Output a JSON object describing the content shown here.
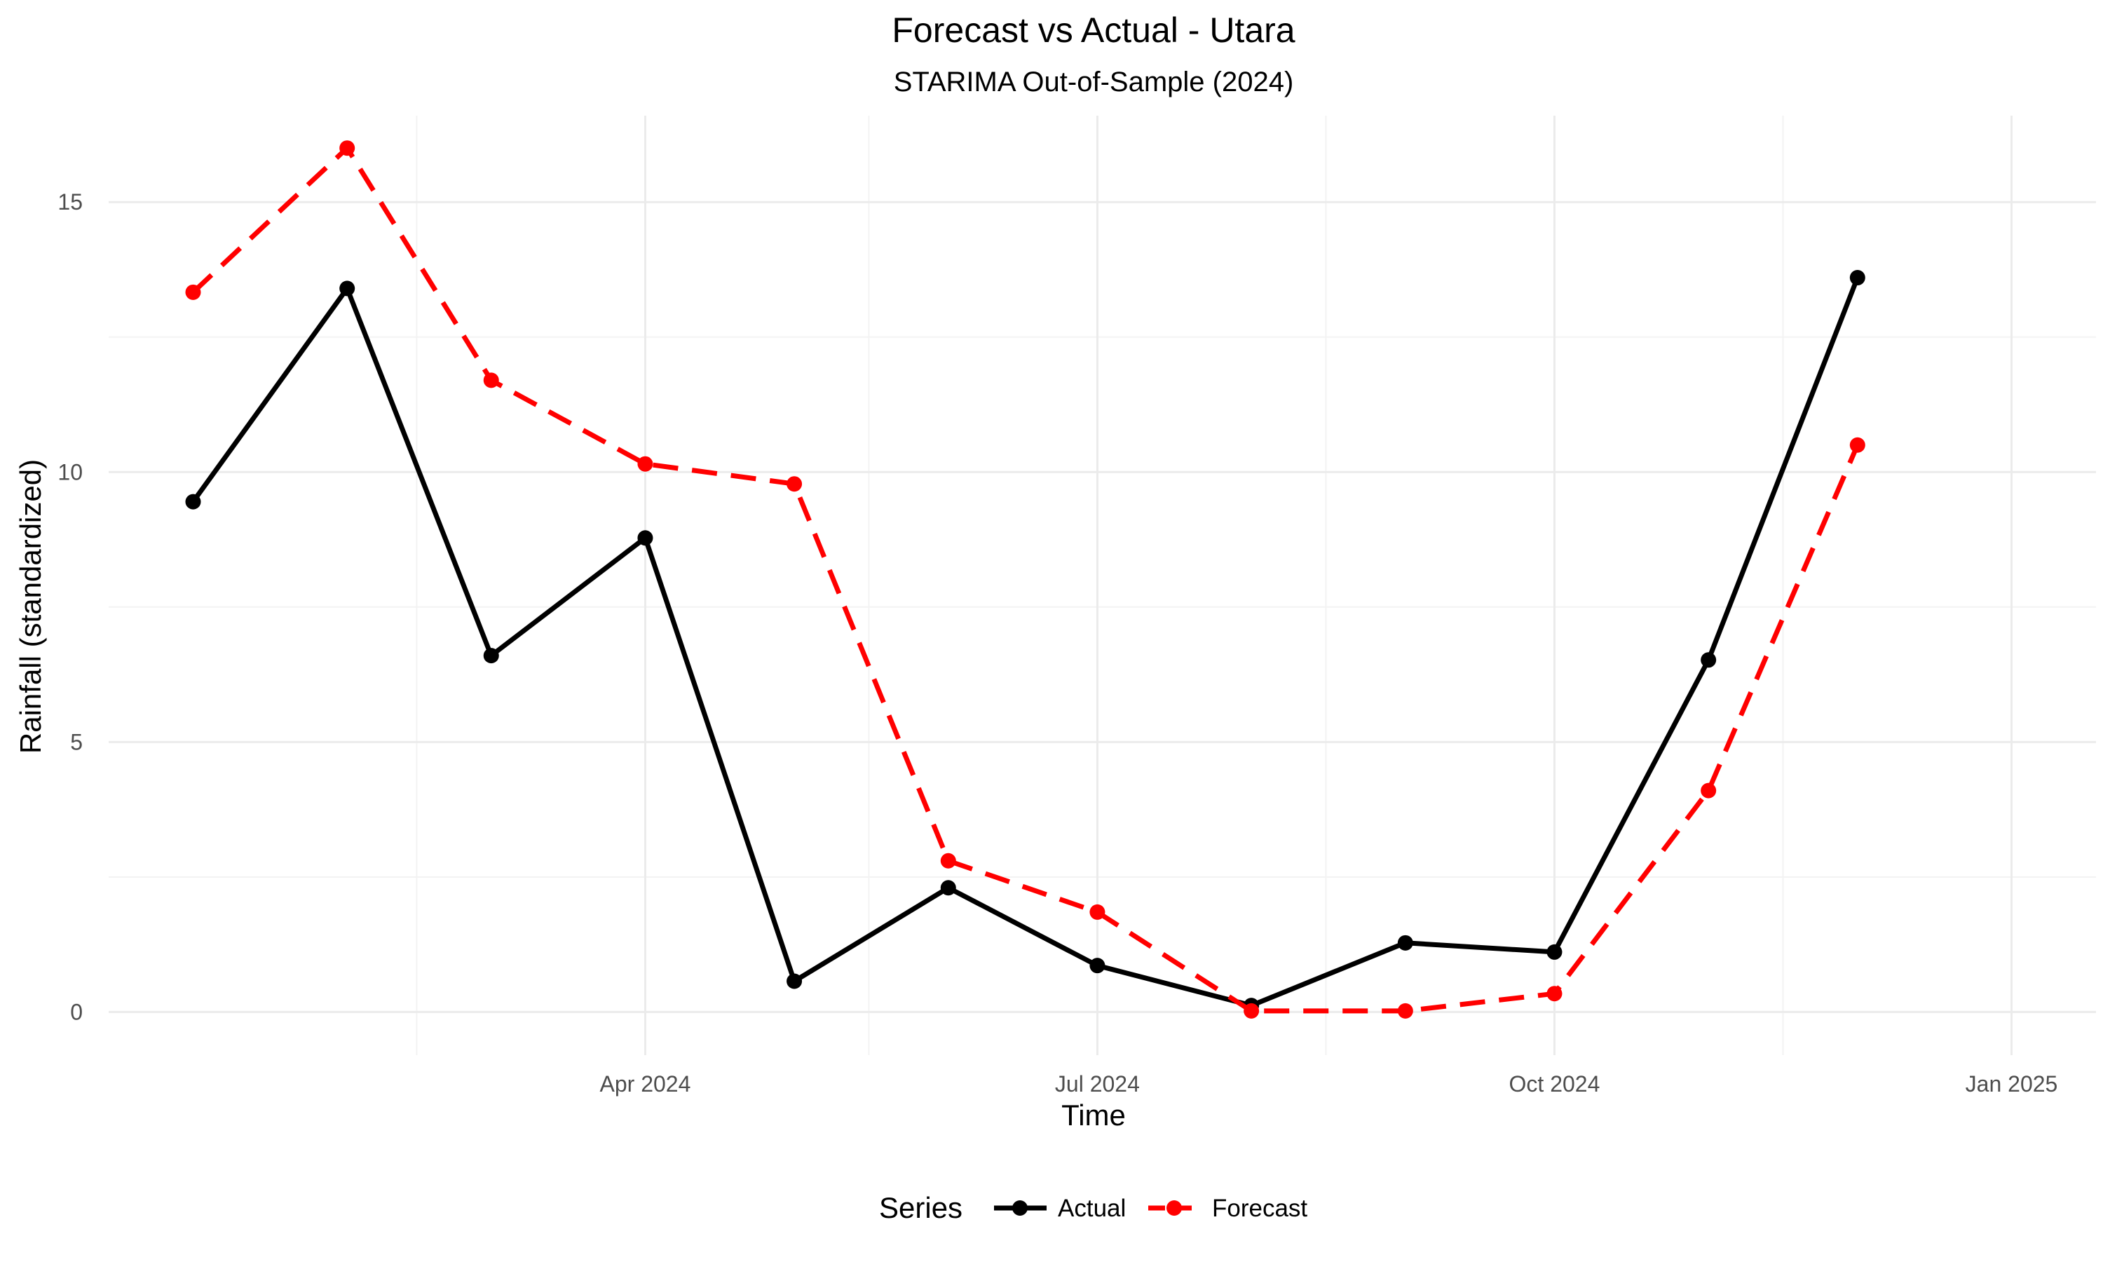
{
  "chart_data": {
    "type": "line",
    "title": "Forecast vs Actual - Utara",
    "subtitle": "STARIMA Out-of-Sample (2024)",
    "xlabel": "Time",
    "ylabel": "Rainfall (standardized)",
    "x": [
      "2024-01-01",
      "2024-02-01",
      "2024-03-01",
      "2024-04-01",
      "2024-05-01",
      "2024-06-01",
      "2024-07-01",
      "2024-08-01",
      "2024-09-01",
      "2024-10-01",
      "2024-11-01",
      "2024-12-01"
    ],
    "x_range": [
      "2023-12-15",
      "2025-01-18"
    ],
    "x_ticks": [
      {
        "date": "2024-04-01",
        "label": "Apr 2024"
      },
      {
        "date": "2024-07-01",
        "label": "Jul 2024"
      },
      {
        "date": "2024-10-01",
        "label": "Oct 2024"
      },
      {
        "date": "2025-01-01",
        "label": "Jan 2025"
      }
    ],
    "x_minor_ticks": [
      "2024-02-15",
      "2024-05-16",
      "2024-08-16",
      "2024-11-16"
    ],
    "ylim": [
      -0.8,
      16.6
    ],
    "y_ticks": [
      0,
      5,
      10,
      15
    ],
    "y_tick_labels": [
      "0",
      "5",
      "10",
      "15"
    ],
    "y_minor_ticks": [
      2.5,
      7.5,
      12.5
    ],
    "grid": true,
    "legend": {
      "title": "Series",
      "position": "bottom"
    },
    "series": [
      {
        "name": "Actual",
        "color": "#000000",
        "line_style": "solid",
        "marker": "circle",
        "x": [
          "2024-01-01",
          "2024-02-01",
          "2024-03-01",
          "2024-04-01",
          "2024-05-01",
          "2024-06-01",
          "2024-07-01",
          "2024-08-01",
          "2024-09-01",
          "2024-10-01",
          "2024-11-01",
          "2024-12-01"
        ],
        "values": [
          9.45,
          13.4,
          6.6,
          8.78,
          0.57,
          2.3,
          0.86,
          0.12,
          1.28,
          1.11,
          6.52,
          13.6
        ]
      },
      {
        "name": "Forecast",
        "color": "#ff0000",
        "line_style": "dashed",
        "marker": "circle",
        "x": [
          "2024-01-01",
          "2024-02-01",
          "2024-03-01",
          "2024-04-01",
          "2024-05-01",
          "2024-06-01",
          "2024-07-01",
          "2024-08-01",
          "2024-09-01",
          "2024-10-01",
          "2024-11-01",
          "2024-12-01"
        ],
        "values": [
          13.33,
          16.0,
          11.7,
          10.15,
          9.78,
          2.8,
          1.85,
          0.02,
          0.02,
          0.34,
          4.1,
          10.5
        ]
      }
    ]
  }
}
